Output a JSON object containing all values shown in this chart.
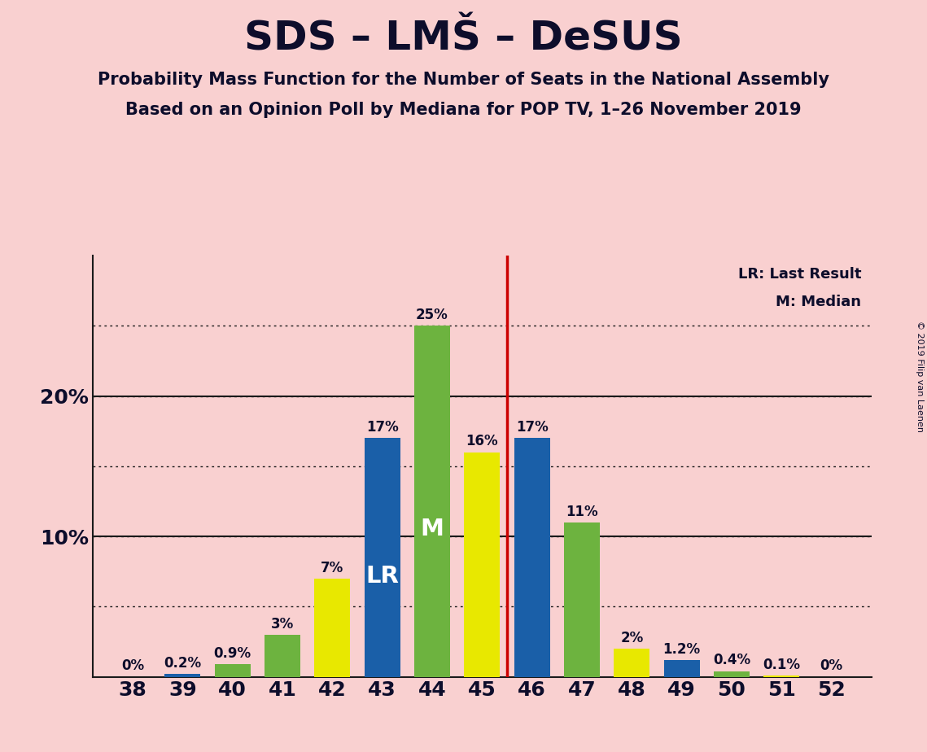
{
  "title": "SDS – LMŠ – DeSUS",
  "subtitle1": "Probability Mass Function for the Number of Seats in the National Assembly",
  "subtitle2": "Based on an Opinion Poll by Mediana for POP TV, 1–26 November 2019",
  "copyright": "© 2019 Filip van Laenen",
  "seats": [
    38,
    39,
    40,
    41,
    42,
    43,
    44,
    45,
    46,
    47,
    48,
    49,
    50,
    51,
    52
  ],
  "values": [
    0.0,
    0.2,
    0.9,
    3.0,
    7.0,
    17.0,
    25.0,
    16.0,
    17.0,
    11.0,
    2.0,
    1.2,
    0.4,
    0.1,
    0.0
  ],
  "bar_colors": [
    "#e8e800",
    "#1a5fa8",
    "#6db33f",
    "#6db33f",
    "#e8e800",
    "#1a5fa8",
    "#6db33f",
    "#e8e800",
    "#1a5fa8",
    "#6db33f",
    "#e8e800",
    "#1a5fa8",
    "#6db33f",
    "#e8e800",
    "#1a5fa8"
  ],
  "lr_seat": 43,
  "median_seat": 44,
  "lr_line_seat": 45.5,
  "labels": [
    "0%",
    "0.2%",
    "0.9%",
    "3%",
    "7%",
    "17%",
    "25%",
    "16%",
    "17%",
    "11%",
    "2%",
    "1.2%",
    "0.4%",
    "0.1%",
    "0%"
  ],
  "background_color": "#f9d0d0",
  "grid_color": "#1a1a1a",
  "title_color": "#0d0d2b",
  "lr_label_color": "#ffffff",
  "m_label_color": "#ffffff",
  "red_line_color": "#cc0000",
  "bar_width": 0.72
}
